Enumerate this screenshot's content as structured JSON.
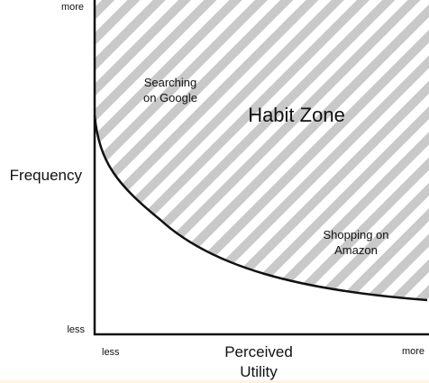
{
  "axes": {
    "y_label": "Frequency",
    "y_top": "more",
    "y_bottom": "less",
    "x_label_line1": "Perceived",
    "x_label_line2": "Utility",
    "x_left": "less",
    "x_right": "more"
  },
  "zone": {
    "title": "Habit Zone",
    "example_top_line1": "Searching",
    "example_top_line2": "on Google",
    "example_bottom_line1": "Shopping on",
    "example_bottom_line2": "Amazon"
  },
  "colors": {
    "hatch_stripe": "#c9c9c9",
    "hatch_gap": "#ffffff",
    "axis": "#111111",
    "curve": "#111111"
  }
}
